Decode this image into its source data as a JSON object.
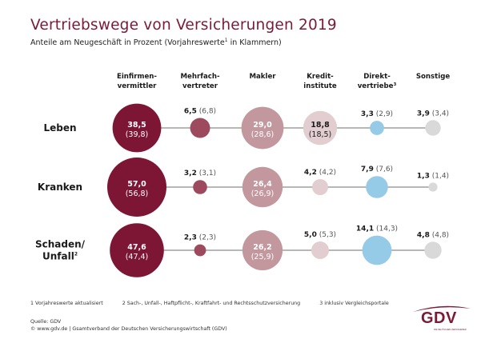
{
  "header": {
    "title": "Vertriebswege von Versicherungen 2019",
    "subtitle_pre": "Anteile am Neugeschäft in Prozent (Vorjahreswerte",
    "subtitle_sup": "1",
    "subtitle_post": " in Klammern)"
  },
  "chart_data": {
    "type": "bubble-table",
    "title": "Vertriebswege von Versicherungen 2019",
    "subtitle": "Anteile am Neugeschäft in Prozent (Vorjahreswerte¹ in Klammern)",
    "unit": "Prozent",
    "columns": [
      {
        "label": [
          "Einfirmen-",
          "vermittler"
        ],
        "sup": "",
        "color": "#7d1535"
      },
      {
        "label": [
          "Mehrfach-",
          "vertreter"
        ],
        "sup": "",
        "color": "#9e4a5e"
      },
      {
        "label": [
          "Makler"
        ],
        "sup": "",
        "color": "#c2989e"
      },
      {
        "label": [
          "Kredit-",
          "institute"
        ],
        "sup": "",
        "color": "#e2cdd0"
      },
      {
        "label": [
          "Direkt-",
          "vertriebe"
        ],
        "sup": "3",
        "color": "#96cbe8"
      },
      {
        "label": [
          "Sonstige"
        ],
        "sup": "",
        "color": "#d9d9d9"
      }
    ],
    "rows": [
      {
        "label": [
          "Leben"
        ],
        "sup": "",
        "values": [
          38.5,
          6.5,
          29.0,
          18.8,
          3.3,
          3.9
        ],
        "previous": [
          39.8,
          6.8,
          28.6,
          18.5,
          2.9,
          3.4
        ],
        "values_text": [
          "38,5",
          "6,5",
          "29,0",
          "18,8",
          "3,3",
          "3,9"
        ],
        "previous_text": [
          "(39,8)",
          "(6,8)",
          "(28,6)",
          "(18,5)",
          "(2,9)",
          "(3,4)"
        ]
      },
      {
        "label": [
          "Kranken"
        ],
        "sup": "",
        "values": [
          57.0,
          3.2,
          26.4,
          4.2,
          7.9,
          1.3
        ],
        "previous": [
          56.8,
          3.1,
          26.9,
          4.2,
          7.6,
          1.4
        ],
        "values_text": [
          "57,0",
          "3,2",
          "26,4",
          "4,2",
          "7,9",
          "1,3"
        ],
        "previous_text": [
          "(56,8)",
          "(3,1)",
          "(26,9)",
          "(4,2)",
          "(7,6)",
          "(1,4)"
        ]
      },
      {
        "label": [
          "Schaden/",
          "Unfall"
        ],
        "sup": "2",
        "values": [
          47.6,
          2.3,
          26.2,
          5.0,
          14.1,
          4.8
        ],
        "previous": [
          47.4,
          2.3,
          25.9,
          5.3,
          14.3,
          4.8
        ],
        "values_text": [
          "47,6",
          "2,3",
          "26,2",
          "5,0",
          "14,1",
          "4,8"
        ],
        "previous_text": [
          "(47,4)",
          "(2,3)",
          "(25,9)",
          "(5,3)",
          "(14,3)",
          "(4,8)"
        ]
      }
    ],
    "label_inside_threshold": 15,
    "inside_label_colors": {
      "dark": "#ffffff",
      "light": "#1a1a1a"
    },
    "line_color": "#8c8c8c"
  },
  "footnotes": [
    "1  Vorjahreswerte aktualisiert",
    "2  Sach-, Unfall-, Haftpflicht-, Kraftfahrt- und Rechtsschutzversicherung",
    "3  inklusiv Vergleichsportale"
  ],
  "source": {
    "line1": "Quelle: GDV",
    "line2": "© www.gdv.de | Gsamtverband der Deutschen Versicherungswirtschaft (GDV)"
  },
  "logo": {
    "text": "GDV",
    "tagline": "DIE DEUTSCHEN VERSICHERER",
    "color": "#7a1a36"
  }
}
